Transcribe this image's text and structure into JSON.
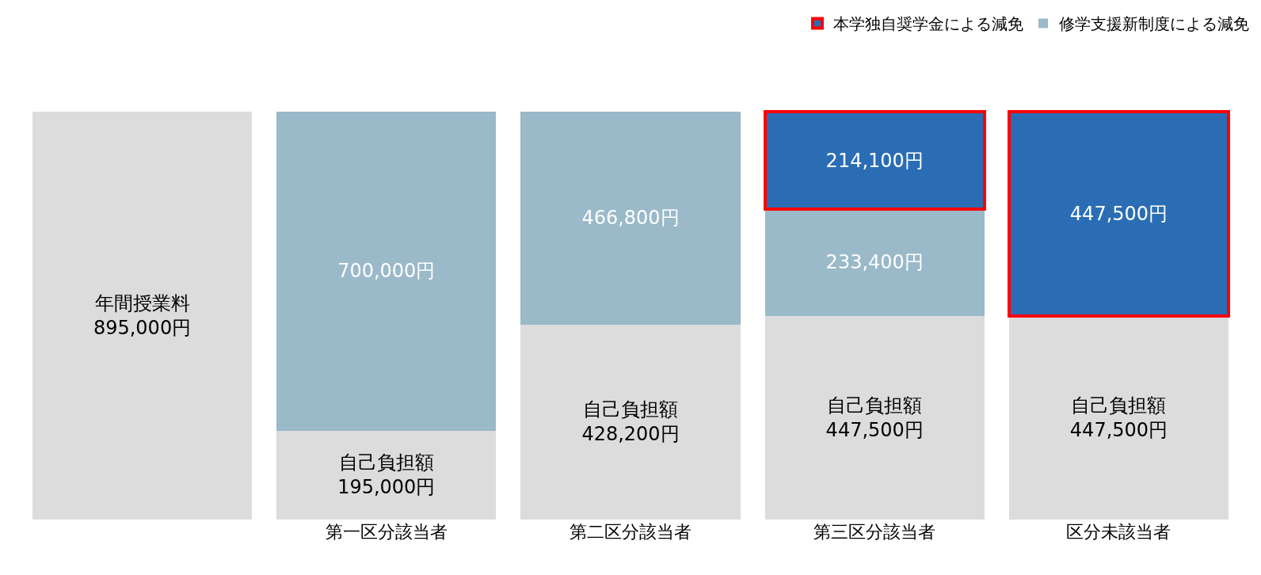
{
  "chart_data": {
    "type": "bar",
    "stacked": true,
    "categories": [
      null,
      "第一区分該当者",
      "第二区分該当者",
      "第三区分該当者",
      "区分未該当者"
    ],
    "series": [
      {
        "color": "#dcdcdc",
        "values": [
          895000,
          195000,
          428200,
          447500,
          447500
        ],
        "value_labels": [
          "年間授業料\n895,000円",
          "自己負担額\n195,000円",
          "自己負担額\n428,200円",
          "自己負担額\n447,500円",
          "自己負担額\n447,500円"
        ]
      },
      {
        "name": "修学支援新制度による減免",
        "color": "#9ab9c9",
        "values": [
          null,
          700000,
          466800,
          233400,
          null
        ],
        "value_labels": [
          null,
          "700,000円",
          "466,800円",
          "233,400円",
          null
        ]
      },
      {
        "name": "本学独自奨学金による減免",
        "color": "#2a6db5",
        "values": [
          null,
          null,
          null,
          214100,
          447500
        ],
        "value_labels": [
          null,
          null,
          null,
          "214,100円",
          "447,500円"
        ]
      }
    ],
    "legend": "top right",
    "tick_labels": "x"
  }
}
